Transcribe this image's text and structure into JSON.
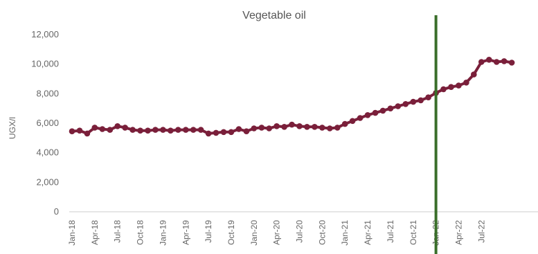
{
  "chart_data": {
    "type": "line",
    "title": "Vegetable oil",
    "xlabel": "",
    "ylabel": "UGX/l",
    "ylim": [
      0,
      12000
    ],
    "yticks": [
      0,
      2000,
      4000,
      6000,
      8000,
      10000,
      12000
    ],
    "ytick_labels": [
      "0",
      "2,000",
      "4,000",
      "6,000",
      "8,000",
      "10,000",
      "12,000"
    ],
    "x_tick_labels": [
      "Jan-18",
      "Apr-18",
      "Jul-18",
      "Oct-18",
      "Jan-19",
      "Apr-19",
      "Jul-19",
      "Oct-19",
      "Jan-20",
      "Apr-20",
      "Jul-20",
      "Oct-20",
      "Jan-21",
      "Apr-21",
      "Jul-21",
      "Oct-21",
      "Jan-22",
      "Apr-22",
      "Jul-22"
    ],
    "x_start": "Jan-18",
    "x_step_months": 1,
    "series": [
      {
        "color": "#7a1f3a",
        "values": [
          5450,
          5500,
          5300,
          5700,
          5600,
          5550,
          5800,
          5700,
          5550,
          5500,
          5500,
          5550,
          5550,
          5500,
          5550,
          5550,
          5550,
          5550,
          5300,
          5350,
          5400,
          5400,
          5600,
          5450,
          5650,
          5700,
          5650,
          5800,
          5750,
          5900,
          5800,
          5750,
          5750,
          5700,
          5650,
          5700,
          5950,
          6150,
          6350,
          6550,
          6700,
          6850,
          7000,
          7150,
          7300,
          7450,
          7550,
          7750,
          8050,
          8300,
          8450,
          8550,
          8750,
          9300,
          10150,
          10300,
          10150,
          10200,
          10100
        ]
      }
    ],
    "vertical_marker": {
      "x": "Jan-22",
      "color": "#3a6e2a"
    },
    "grid": false,
    "legend": "none"
  }
}
